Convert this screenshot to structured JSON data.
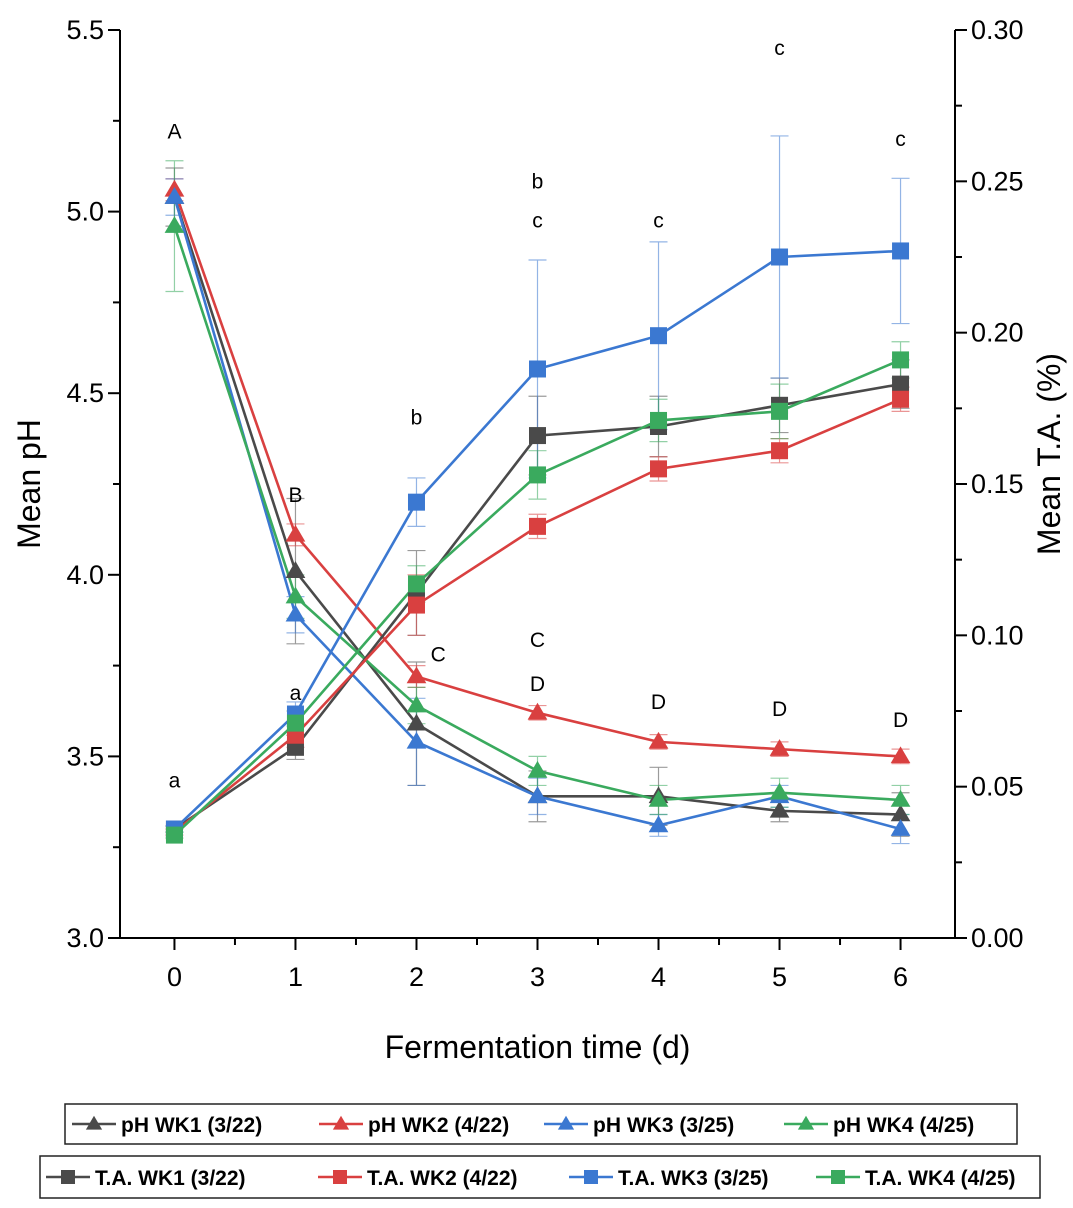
{
  "chart_data": {
    "type": "line",
    "x": [
      0,
      1,
      2,
      3,
      4,
      5,
      6
    ],
    "xlabel": "Fermentation time (d)",
    "xlim": [
      -0.45,
      6.45
    ],
    "xticks": [
      "0",
      "1",
      "2",
      "3",
      "4",
      "5",
      "6"
    ],
    "ylabel": "Mean pH",
    "ylim": [
      3.0,
      5.5
    ],
    "yticks": [
      "3.0",
      "3.5",
      "4.0",
      "4.5",
      "5.0",
      "5.5"
    ],
    "y2label": "Mean T.A. (%)",
    "y2lim": [
      0.0,
      0.3
    ],
    "y2ticks": [
      "0.00",
      "0.05",
      "0.10",
      "0.15",
      "0.20",
      "0.25",
      "0.30"
    ],
    "grid": false,
    "legend_position": "bottom",
    "series": [
      {
        "name": "pH WK1 (3/22)",
        "axis": "left",
        "marker": "triangle",
        "color": "#4a4a4a",
        "values": [
          5.04,
          4.01,
          3.59,
          3.39,
          3.39,
          3.35,
          3.34
        ],
        "errors": [
          0.08,
          0.2,
          0.17,
          0.07,
          0.08,
          0.03,
          0.06
        ]
      },
      {
        "name": "pH WK2 (4/22)",
        "axis": "left",
        "marker": "triangle",
        "color": "#d94040",
        "values": [
          5.06,
          4.11,
          3.72,
          3.62,
          3.54,
          3.52,
          3.5
        ],
        "errors": [
          0.03,
          0.03,
          0.03,
          0.02,
          0.02,
          0.02,
          0.02
        ]
      },
      {
        "name": "pH WK3 (3/25)",
        "axis": "left",
        "marker": "triangle",
        "color": "#3b78d1",
        "values": [
          5.04,
          3.89,
          3.54,
          3.39,
          3.31,
          3.39,
          3.3
        ],
        "errors": [
          0.05,
          0.05,
          0.12,
          0.05,
          0.03,
          0.03,
          0.04
        ]
      },
      {
        "name": "pH WK4 (4/25)",
        "axis": "left",
        "marker": "triangle",
        "color": "#3aaa5e",
        "values": [
          4.96,
          3.94,
          3.64,
          3.46,
          3.38,
          3.4,
          3.38
        ],
        "errors": [
          0.18,
          0.06,
          0.05,
          0.04,
          0.04,
          0.04,
          0.04
        ]
      },
      {
        "name": "T.A. WK1 (3/22)",
        "axis": "right",
        "marker": "square",
        "color": "#4a4a4a",
        "values": [
          0.036,
          0.063,
          0.114,
          0.166,
          0.169,
          0.176,
          0.183
        ],
        "errors": [
          0.001,
          0.004,
          0.014,
          0.013,
          0.01,
          0.009,
          0.008
        ]
      },
      {
        "name": "T.A. WK2 (4/22)",
        "axis": "right",
        "marker": "square",
        "color": "#d94040",
        "values": [
          0.035,
          0.067,
          0.11,
          0.136,
          0.155,
          0.161,
          0.178
        ],
        "errors": [
          0.001,
          0.004,
          0.01,
          0.004,
          0.004,
          0.004,
          0.004
        ]
      },
      {
        "name": "T.A. WK3 (3/25)",
        "axis": "right",
        "marker": "square",
        "color": "#3b78d1",
        "values": [
          0.036,
          0.074,
          0.144,
          0.188,
          0.199,
          0.225,
          0.227
        ],
        "errors": [
          0.001,
          0.004,
          0.008,
          0.036,
          0.031,
          0.04,
          0.024
        ]
      },
      {
        "name": "T.A. WK4 (4/25)",
        "axis": "right",
        "marker": "square",
        "color": "#3aaa5e",
        "values": [
          0.034,
          0.071,
          0.117,
          0.153,
          0.171,
          0.174,
          0.191
        ],
        "errors": [
          0.001,
          0.004,
          0.006,
          0.008,
          0.007,
          0.009,
          0.006
        ]
      }
    ],
    "annotations": [
      {
        "x": 0,
        "y": 5.22,
        "axis": "left",
        "text": "A"
      },
      {
        "x": 1,
        "y": 4.22,
        "axis": "left",
        "text": "B"
      },
      {
        "x": 2.18,
        "y": 3.78,
        "axis": "left",
        "text": "C"
      },
      {
        "x": 3,
        "y": 3.82,
        "axis": "left",
        "text": "C"
      },
      {
        "x": 3,
        "y": 3.7,
        "axis": "left",
        "text": "D"
      },
      {
        "x": 4,
        "y": 3.65,
        "axis": "left",
        "text": "D"
      },
      {
        "x": 5,
        "y": 3.63,
        "axis": "left",
        "text": "D"
      },
      {
        "x": 6,
        "y": 3.6,
        "axis": "left",
        "text": "D"
      },
      {
        "x": 0,
        "y": 0.052,
        "axis": "right",
        "text": "a"
      },
      {
        "x": 1,
        "y": 0.081,
        "axis": "right",
        "text": "a"
      },
      {
        "x": 2,
        "y": 0.172,
        "axis": "right",
        "text": "b"
      },
      {
        "x": 3,
        "y": 0.25,
        "axis": "right",
        "text": "b"
      },
      {
        "x": 3,
        "y": 0.237,
        "axis": "right",
        "text": "c"
      },
      {
        "x": 4,
        "y": 0.237,
        "axis": "right",
        "text": "c"
      },
      {
        "x": 5,
        "y": 0.294,
        "axis": "right",
        "text": "c"
      },
      {
        "x": 6,
        "y": 0.264,
        "axis": "right",
        "text": "c"
      }
    ]
  }
}
